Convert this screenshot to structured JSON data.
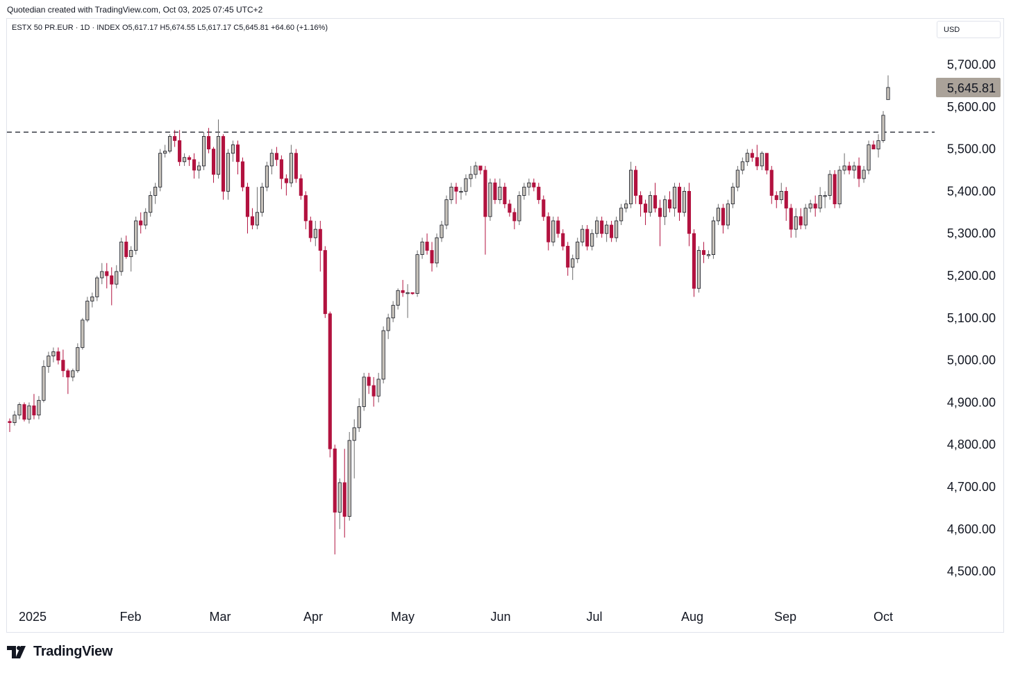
{
  "caption": "Quotedian created with TradingView.com, Oct 03, 2025 07:45 UTC+2",
  "header": {
    "symbol": "ESTX 50 PR.EUR · 1D · INDEX",
    "open": "O5,617.17",
    "high": "H5,674.55",
    "low": "L5,617.17",
    "close": "C5,645.81",
    "change": "+64.60 (+1.16%)"
  },
  "currency": "USD",
  "last_price_label": "5,645.81",
  "brand": "TradingView",
  "colors": {
    "up_body": "#c8c3bb",
    "up_border": "#131722",
    "down_body": "#b2123f",
    "down_wick": "#b2123f",
    "last_price_bg": "#aaa299",
    "resistance_line": "#131722"
  },
  "chart_data": {
    "type": "candlestick",
    "y_axis": {
      "ticks": [
        "5,700.00",
        "5,600.00",
        "5,500.00",
        "5,400.00",
        "5,300.00",
        "5,200.00",
        "5,100.00",
        "5,000.00",
        "4,900.00",
        "4,800.00",
        "4,700.00",
        "4,600.00",
        "4,500.00"
      ],
      "range": [
        4460,
        5780
      ]
    },
    "x_axis": {
      "ticks": [
        "2025",
        "Feb",
        "Mar",
        "Apr",
        "May",
        "Jun",
        "Jul",
        "Aug",
        "Sep",
        "Oct"
      ]
    },
    "resistance_level": 5540,
    "last_close": 5645.81,
    "ohlc": [
      [
        4855,
        4862,
        4830,
        4852
      ],
      [
        4852,
        4880,
        4845,
        4870
      ],
      [
        4870,
        4900,
        4860,
        4895
      ],
      [
        4895,
        4900,
        4855,
        4860
      ],
      [
        4860,
        4900,
        4850,
        4892
      ],
      [
        4892,
        4920,
        4860,
        4870
      ],
      [
        4870,
        4915,
        4860,
        4905
      ],
      [
        4905,
        5000,
        4900,
        4985
      ],
      [
        4985,
        5020,
        4970,
        5010
      ],
      [
        5010,
        5030,
        4995,
        5020
      ],
      [
        5020,
        5030,
        4990,
        5000
      ],
      [
        5000,
        5025,
        4960,
        4975
      ],
      [
        4975,
        4980,
        4920,
        4960
      ],
      [
        4960,
        4980,
        4950,
        4975
      ],
      [
        4975,
        5040,
        4970,
        5030
      ],
      [
        5030,
        5100,
        5025,
        5095
      ],
      [
        5095,
        5150,
        5090,
        5140
      ],
      [
        5140,
        5160,
        5125,
        5150
      ],
      [
        5150,
        5200,
        5140,
        5195
      ],
      [
        5195,
        5230,
        5180,
        5210
      ],
      [
        5210,
        5230,
        5170,
        5200
      ],
      [
        5200,
        5220,
        5130,
        5180
      ],
      [
        5180,
        5225,
        5170,
        5210
      ],
      [
        5210,
        5290,
        5200,
        5280
      ],
      [
        5280,
        5295,
        5240,
        5245
      ],
      [
        5245,
        5270,
        5210,
        5260
      ],
      [
        5260,
        5340,
        5250,
        5330
      ],
      [
        5330,
        5350,
        5300,
        5320
      ],
      [
        5320,
        5360,
        5310,
        5350
      ],
      [
        5350,
        5400,
        5340,
        5390
      ],
      [
        5390,
        5420,
        5370,
        5410
      ],
      [
        5410,
        5500,
        5400,
        5490
      ],
      [
        5490,
        5510,
        5480,
        5495
      ],
      [
        5495,
        5535,
        5490,
        5530
      ],
      [
        5530,
        5545,
        5505,
        5520
      ],
      [
        5520,
        5545,
        5460,
        5470
      ],
      [
        5470,
        5490,
        5460,
        5480
      ],
      [
        5480,
        5485,
        5460,
        5475
      ],
      [
        5475,
        5490,
        5430,
        5450
      ],
      [
        5450,
        5470,
        5430,
        5460
      ],
      [
        5460,
        5540,
        5450,
        5530
      ],
      [
        5530,
        5550,
        5490,
        5500
      ],
      [
        5500,
        5505,
        5420,
        5440
      ],
      [
        5440,
        5570,
        5430,
        5530
      ],
      [
        5530,
        5535,
        5380,
        5400
      ],
      [
        5400,
        5500,
        5380,
        5490
      ],
      [
        5490,
        5520,
        5470,
        5510
      ],
      [
        5510,
        5520,
        5440,
        5470
      ],
      [
        5470,
        5480,
        5400,
        5410
      ],
      [
        5410,
        5420,
        5300,
        5340
      ],
      [
        5340,
        5360,
        5310,
        5320
      ],
      [
        5320,
        5410,
        5310,
        5350
      ],
      [
        5350,
        5420,
        5340,
        5410
      ],
      [
        5410,
        5470,
        5400,
        5460
      ],
      [
        5460,
        5500,
        5440,
        5490
      ],
      [
        5490,
        5505,
        5460,
        5475
      ],
      [
        5475,
        5485,
        5405,
        5430
      ],
      [
        5430,
        5440,
        5390,
        5420
      ],
      [
        5420,
        5510,
        5410,
        5490
      ],
      [
        5490,
        5500,
        5420,
        5430
      ],
      [
        5430,
        5440,
        5380,
        5390
      ],
      [
        5390,
        5400,
        5310,
        5330
      ],
      [
        5330,
        5340,
        5280,
        5290
      ],
      [
        5290,
        5330,
        5270,
        5310
      ],
      [
        5310,
        5330,
        5210,
        5260
      ],
      [
        5260,
        5270,
        5100,
        5110
      ],
      [
        5110,
        5115,
        4770,
        4790
      ],
      [
        4790,
        4800,
        4540,
        4640
      ],
      [
        4640,
        4720,
        4600,
        4710
      ],
      [
        4710,
        4790,
        4580,
        4630
      ],
      [
        4630,
        4830,
        4620,
        4810
      ],
      [
        4810,
        4860,
        4720,
        4840
      ],
      [
        4840,
        4910,
        4830,
        4890
      ],
      [
        4890,
        4970,
        4880,
        4960
      ],
      [
        4960,
        4970,
        4920,
        4940
      ],
      [
        4940,
        4960,
        4890,
        4915
      ],
      [
        4915,
        4970,
        4900,
        4955
      ],
      [
        4955,
        5080,
        4945,
        5070
      ],
      [
        5070,
        5110,
        5050,
        5100
      ],
      [
        5100,
        5140,
        5090,
        5130
      ],
      [
        5130,
        5170,
        5120,
        5165
      ],
      [
        5165,
        5190,
        5150,
        5160
      ],
      [
        5160,
        5180,
        5100,
        5160
      ],
      [
        5160,
        5160,
        5155,
        5158
      ],
      [
        5158,
        5260,
        5150,
        5250
      ],
      [
        5250,
        5290,
        5240,
        5280
      ],
      [
        5280,
        5300,
        5250,
        5260
      ],
      [
        5260,
        5280,
        5210,
        5230
      ],
      [
        5230,
        5300,
        5220,
        5290
      ],
      [
        5290,
        5330,
        5280,
        5320
      ],
      [
        5320,
        5390,
        5310,
        5380
      ],
      [
        5380,
        5420,
        5370,
        5410
      ],
      [
        5410,
        5420,
        5370,
        5400
      ],
      [
        5400,
        5410,
        5380,
        5400
      ],
      [
        5400,
        5440,
        5390,
        5430
      ],
      [
        5430,
        5460,
        5410,
        5440
      ],
      [
        5440,
        5470,
        5430,
        5460
      ],
      [
        5460,
        5460,
        5440,
        5450
      ],
      [
        5450,
        5460,
        5250,
        5340
      ],
      [
        5340,
        5430,
        5330,
        5420
      ],
      [
        5420,
        5430,
        5370,
        5380
      ],
      [
        5380,
        5430,
        5370,
        5410
      ],
      [
        5410,
        5420,
        5360,
        5370
      ],
      [
        5370,
        5380,
        5340,
        5350
      ],
      [
        5350,
        5360,
        5310,
        5330
      ],
      [
        5330,
        5400,
        5320,
        5390
      ],
      [
        5390,
        5420,
        5380,
        5410
      ],
      [
        5410,
        5430,
        5390,
        5420
      ],
      [
        5420,
        5430,
        5400,
        5410
      ],
      [
        5410,
        5420,
        5370,
        5380
      ],
      [
        5380,
        5390,
        5330,
        5340
      ],
      [
        5340,
        5350,
        5260,
        5280
      ],
      [
        5280,
        5340,
        5270,
        5330
      ],
      [
        5330,
        5340,
        5290,
        5300
      ],
      [
        5300,
        5310,
        5260,
        5270
      ],
      [
        5270,
        5280,
        5200,
        5220
      ],
      [
        5220,
        5250,
        5190,
        5240
      ],
      [
        5240,
        5290,
        5230,
        5280
      ],
      [
        5280,
        5320,
        5270,
        5310
      ],
      [
        5310,
        5320,
        5260,
        5270
      ],
      [
        5270,
        5310,
        5260,
        5300
      ],
      [
        5300,
        5340,
        5290,
        5330
      ],
      [
        5330,
        5340,
        5290,
        5300
      ],
      [
        5300,
        5330,
        5280,
        5320
      ],
      [
        5320,
        5330,
        5280,
        5290
      ],
      [
        5290,
        5340,
        5280,
        5330
      ],
      [
        5330,
        5370,
        5320,
        5360
      ],
      [
        5360,
        5380,
        5350,
        5370
      ],
      [
        5370,
        5470,
        5360,
        5450
      ],
      [
        5450,
        5460,
        5370,
        5390
      ],
      [
        5390,
        5400,
        5340,
        5370
      ],
      [
        5370,
        5380,
        5320,
        5350
      ],
      [
        5350,
        5400,
        5340,
        5390
      ],
      [
        5390,
        5420,
        5350,
        5360
      ],
      [
        5360,
        5380,
        5270,
        5340
      ],
      [
        5340,
        5390,
        5320,
        5380
      ],
      [
        5380,
        5400,
        5350,
        5360
      ],
      [
        5360,
        5420,
        5340,
        5410
      ],
      [
        5410,
        5420,
        5330,
        5350
      ],
      [
        5350,
        5410,
        5340,
        5400
      ],
      [
        5400,
        5420,
        5270,
        5300
      ],
      [
        5300,
        5310,
        5150,
        5170
      ],
      [
        5170,
        5270,
        5160,
        5260
      ],
      [
        5260,
        5280,
        5230,
        5250
      ],
      [
        5250,
        5260,
        5240,
        5250
      ],
      [
        5250,
        5340,
        5240,
        5330
      ],
      [
        5330,
        5370,
        5320,
        5360
      ],
      [
        5360,
        5370,
        5300,
        5320
      ],
      [
        5320,
        5380,
        5310,
        5370
      ],
      [
        5370,
        5420,
        5360,
        5410
      ],
      [
        5410,
        5460,
        5400,
        5450
      ],
      [
        5450,
        5480,
        5440,
        5470
      ],
      [
        5470,
        5500,
        5460,
        5490
      ],
      [
        5490,
        5500,
        5470,
        5480
      ],
      [
        5480,
        5510,
        5450,
        5460
      ],
      [
        5460,
        5495,
        5450,
        5490
      ],
      [
        5490,
        5490,
        5440,
        5450
      ],
      [
        5450,
        5460,
        5370,
        5390
      ],
      [
        5390,
        5400,
        5360,
        5380
      ],
      [
        5380,
        5420,
        5370,
        5400
      ],
      [
        5400,
        5410,
        5330,
        5360
      ],
      [
        5360,
        5370,
        5290,
        5310
      ],
      [
        5310,
        5360,
        5290,
        5340
      ],
      [
        5340,
        5360,
        5310,
        5320
      ],
      [
        5320,
        5370,
        5310,
        5360
      ],
      [
        5360,
        5380,
        5350,
        5370
      ],
      [
        5370,
        5390,
        5340,
        5360
      ],
      [
        5360,
        5410,
        5350,
        5390
      ],
      [
        5390,
        5400,
        5360,
        5390
      ],
      [
        5390,
        5450,
        5380,
        5440
      ],
      [
        5440,
        5450,
        5360,
        5370
      ],
      [
        5370,
        5460,
        5360,
        5450
      ],
      [
        5450,
        5490,
        5440,
        5460
      ],
      [
        5460,
        5470,
        5440,
        5450
      ],
      [
        5450,
        5470,
        5430,
        5460
      ],
      [
        5460,
        5480,
        5410,
        5430
      ],
      [
        5430,
        5460,
        5420,
        5450
      ],
      [
        5450,
        5520,
        5440,
        5510
      ],
      [
        5510,
        5520,
        5500,
        5500
      ],
      [
        5500,
        5535,
        5480,
        5520
      ],
      [
        5520,
        5590,
        5515,
        5580
      ],
      [
        5617.17,
        5674.55,
        5617.17,
        5645.81
      ]
    ]
  }
}
